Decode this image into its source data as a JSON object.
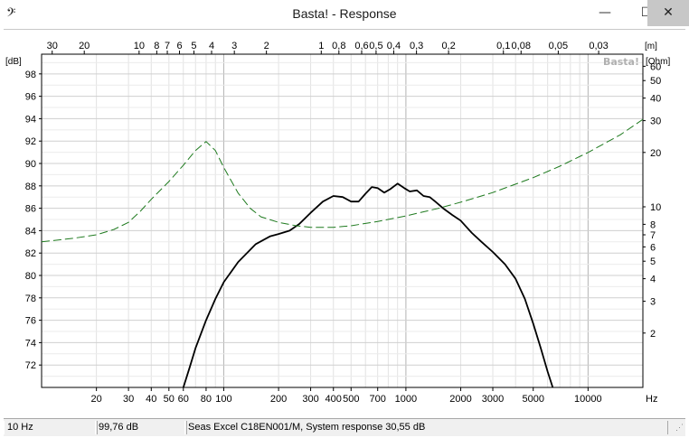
{
  "window": {
    "title": "Basta! - Response",
    "controls": {
      "minimize": "—",
      "maximize": "☐",
      "close": "✕"
    }
  },
  "watermark": "Basta!",
  "chart_data": {
    "type": "line",
    "x_scale": "log",
    "xlim": [
      10,
      20000
    ],
    "x_tick_labels": [
      "20",
      "30",
      "40",
      "50",
      "60",
      "80",
      "100",
      "200",
      "300",
      "400",
      "500",
      "700",
      "1000",
      "2000",
      "3000",
      "5000",
      "10000"
    ],
    "x_unit": "Hz",
    "top_axis": {
      "unit": "[m]",
      "tick_labels": [
        "30",
        "20",
        "10",
        "8",
        "7",
        "6",
        "5",
        "4",
        "3",
        "2",
        "1",
        "0,8",
        "0,6",
        "0,5",
        "0,4",
        "0,3",
        "0,2",
        "0,1",
        "0,08",
        "0,05",
        "0,03"
      ]
    },
    "left_axis": {
      "unit": "[dB]",
      "ylim": [
        70,
        99.76
      ],
      "tick_labels": [
        "72",
        "74",
        "76",
        "78",
        "80",
        "82",
        "84",
        "86",
        "88",
        "90",
        "92",
        "94",
        "96",
        "98"
      ]
    },
    "right_axis": {
      "unit": "[Ohm]",
      "scale": "log",
      "ylim": [
        1,
        70
      ],
      "tick_labels": [
        "2",
        "3",
        "4",
        "5",
        "6",
        "7",
        "8",
        "10",
        "20",
        "30",
        "40",
        "50",
        "60"
      ]
    },
    "grid": true,
    "series": [
      {
        "axis": "left",
        "style": "solid",
        "color": "#000000",
        "points": [
          [
            60,
            70
          ],
          [
            65,
            71.8
          ],
          [
            70,
            73.5
          ],
          [
            80,
            76.0
          ],
          [
            90,
            77.9
          ],
          [
            100,
            79.4
          ],
          [
            120,
            81.2
          ],
          [
            150,
            82.8
          ],
          [
            180,
            83.5
          ],
          [
            200,
            83.7
          ],
          [
            230,
            84.0
          ],
          [
            260,
            84.6
          ],
          [
            300,
            85.6
          ],
          [
            350,
            86.6
          ],
          [
            400,
            87.1
          ],
          [
            450,
            87.0
          ],
          [
            500,
            86.6
          ],
          [
            550,
            86.6
          ],
          [
            600,
            87.3
          ],
          [
            650,
            87.9
          ],
          [
            700,
            87.8
          ],
          [
            760,
            87.4
          ],
          [
            820,
            87.7
          ],
          [
            900,
            88.2
          ],
          [
            980,
            87.8
          ],
          [
            1050,
            87.5
          ],
          [
            1150,
            87.6
          ],
          [
            1250,
            87.1
          ],
          [
            1350,
            87.0
          ],
          [
            1450,
            86.6
          ],
          [
            1600,
            86.0
          ],
          [
            1800,
            85.4
          ],
          [
            2000,
            84.9
          ],
          [
            2300,
            83.8
          ],
          [
            2600,
            83.0
          ],
          [
            3000,
            82.1
          ],
          [
            3500,
            81.0
          ],
          [
            4000,
            79.7
          ],
          [
            4500,
            77.9
          ],
          [
            5000,
            75.7
          ],
          [
            5500,
            73.5
          ],
          [
            6000,
            71.4
          ],
          [
            6400,
            70
          ]
        ]
      },
      {
        "axis": "right",
        "style": "dashed",
        "color": "#1e7a1e",
        "points": [
          [
            10,
            6.4
          ],
          [
            15,
            6.7
          ],
          [
            20,
            7.0
          ],
          [
            25,
            7.5
          ],
          [
            30,
            8.2
          ],
          [
            35,
            9.5
          ],
          [
            40,
            11.0
          ],
          [
            50,
            13.8
          ],
          [
            60,
            17.0
          ],
          [
            70,
            20.5
          ],
          [
            80,
            23.0
          ],
          [
            90,
            20.5
          ],
          [
            100,
            16.5
          ],
          [
            120,
            11.9
          ],
          [
            140,
            9.8
          ],
          [
            160,
            8.8
          ],
          [
            200,
            8.2
          ],
          [
            250,
            7.85
          ],
          [
            300,
            7.7
          ],
          [
            400,
            7.7
          ],
          [
            500,
            7.85
          ],
          [
            700,
            8.3
          ],
          [
            1000,
            8.9
          ],
          [
            1500,
            9.8
          ],
          [
            2000,
            10.6
          ],
          [
            3000,
            12.0
          ],
          [
            5000,
            14.5
          ],
          [
            7000,
            16.8
          ],
          [
            10000,
            20.0
          ],
          [
            15000,
            25.0
          ],
          [
            20000,
            30.5
          ]
        ]
      }
    ]
  },
  "status": {
    "frequency": "10 Hz",
    "level": "99,76 dB",
    "description": "Seas Excel C18EN001/M, System response 30,55 dB"
  }
}
